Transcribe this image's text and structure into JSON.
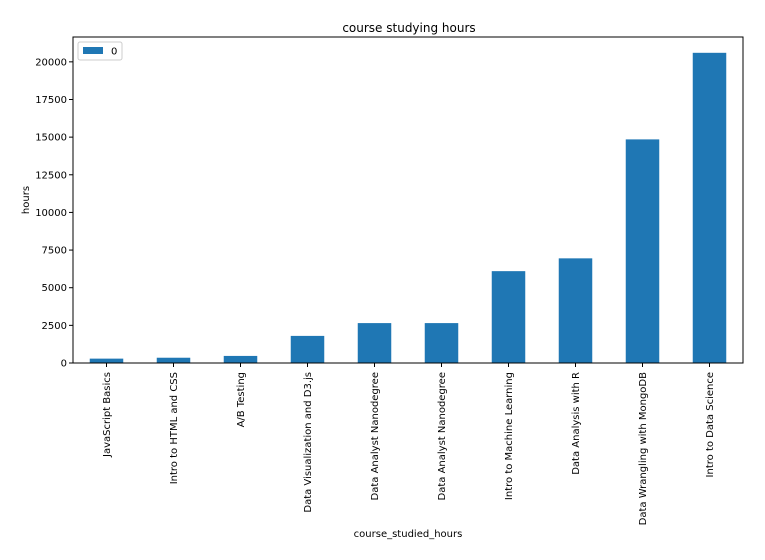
{
  "chart_data": {
    "type": "bar",
    "title": "course studying hours",
    "xlabel": "course_studied_hours",
    "ylabel": "hours",
    "categories": [
      "JavaScript Basics",
      "Intro to HTML and CSS",
      "A/B Testing",
      "Data Visualization and D3.js",
      "Data Analyst Nanodegree",
      "Data Analyst Nanodegree",
      "Intro to Machine Learning",
      "Data Analysis with R",
      "Data Wrangling with MongoDB",
      "Intro to Data Science"
    ],
    "series": [
      {
        "name": "0",
        "values": [
          290,
          350,
          470,
          1800,
          2650,
          2650,
          6100,
          6950,
          14850,
          20600
        ]
      }
    ],
    "ylim": [
      0,
      21650
    ],
    "yticks": [
      0,
      2500,
      5000,
      7500,
      10000,
      12500,
      15000,
      17500,
      20000
    ],
    "legend_position": "top-left",
    "grid": false,
    "bar_color": "#1f77b4"
  }
}
